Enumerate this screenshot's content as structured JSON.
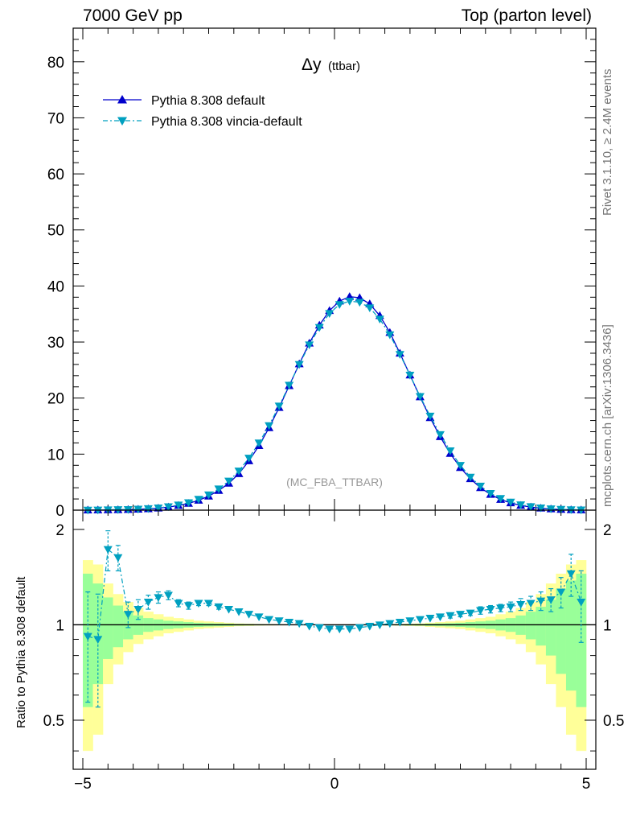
{
  "header": {
    "energy": "7000 GeV pp",
    "process": "Top (parton level)"
  },
  "side_labels": {
    "rivet": "Rivet 3.1.10, ≥ 2.4M events",
    "source": "mcplots.cern.ch [arXiv:1306.3436]"
  },
  "colors": {
    "default": "#0000cc",
    "vincia": "#00a0c0",
    "band_yellow": "#ffff99",
    "band_green": "#99ff99"
  },
  "chart_data": [
    {
      "type": "line",
      "title": "Δy",
      "subtitle": "(ttbar)",
      "analysis_tag": "(MC_FBA_TTBAR)",
      "xlabel": "",
      "ylabel": "",
      "xlim": [
        -5,
        5
      ],
      "ylim": [
        0,
        86
      ],
      "y_ticks": [
        "0",
        "10",
        "20",
        "30",
        "40",
        "50",
        "60",
        "70",
        "80"
      ],
      "legend_position": "top-left",
      "x": [
        -4.9,
        -4.7,
        -4.5,
        -4.3,
        -4.1,
        -3.9,
        -3.7,
        -3.5,
        -3.3,
        -3.1,
        -2.9,
        -2.7,
        -2.5,
        -2.3,
        -2.1,
        -1.9,
        -1.7,
        -1.5,
        -1.3,
        -1.1,
        -0.9,
        -0.7,
        -0.5,
        -0.3,
        -0.1,
        0.1,
        0.3,
        0.5,
        0.7,
        0.9,
        1.1,
        1.3,
        1.5,
        1.7,
        1.9,
        2.1,
        2.3,
        2.5,
        2.7,
        2.9,
        3.1,
        3.3,
        3.5,
        3.7,
        3.9,
        4.1,
        4.3,
        4.5,
        4.7,
        4.9
      ],
      "series": [
        {
          "name": "Pythia 8.308 default",
          "values": [
            0.02,
            0.03,
            0.05,
            0.07,
            0.11,
            0.16,
            0.24,
            0.36,
            0.55,
            0.82,
            1.2,
            1.75,
            2.5,
            3.5,
            4.8,
            6.5,
            8.8,
            11.5,
            14.7,
            18.3,
            22.2,
            26.1,
            29.8,
            33.0,
            35.6,
            37.3,
            38.1,
            37.9,
            36.8,
            34.7,
            31.7,
            28.0,
            24.1,
            20.2,
            16.5,
            13.1,
            10.1,
            7.6,
            5.6,
            4.0,
            2.8,
            1.9,
            1.3,
            0.85,
            0.55,
            0.35,
            0.22,
            0.13,
            0.08,
            0.04
          ]
        },
        {
          "name": "Pythia 8.308 vincia-default",
          "values": [
            0.02,
            0.03,
            0.08,
            0.1,
            0.13,
            0.19,
            0.29,
            0.42,
            0.62,
            0.93,
            1.34,
            1.95,
            2.75,
            3.8,
            5.2,
            7.0,
            9.3,
            12.0,
            15.1,
            18.6,
            22.3,
            26.0,
            29.5,
            32.6,
            35.1,
            36.7,
            37.3,
            37.1,
            36.1,
            34.1,
            31.3,
            27.8,
            24.1,
            20.3,
            16.8,
            13.5,
            10.6,
            8.0,
            5.9,
            4.3,
            3.0,
            2.1,
            1.45,
            0.97,
            0.64,
            0.42,
            0.26,
            0.16,
            0.09,
            0.05
          ]
        }
      ]
    },
    {
      "type": "line",
      "ylabel": "Ratio to Pythia 8.308 default",
      "xlim": [
        -5,
        5
      ],
      "ylim": [
        0.35,
        2.3
      ],
      "x_ticks": [
        "−5",
        "0",
        "5"
      ],
      "y_ticks_right": [
        "0.5",
        "1",
        "2"
      ],
      "x": [
        -4.9,
        -4.7,
        -4.5,
        -4.3,
        -4.1,
        -3.9,
        -3.7,
        -3.5,
        -3.3,
        -3.1,
        -2.9,
        -2.7,
        -2.5,
        -2.3,
        -2.1,
        -1.9,
        -1.7,
        -1.5,
        -1.3,
        -1.1,
        -0.9,
        -0.7,
        -0.5,
        -0.3,
        -0.1,
        0.1,
        0.3,
        0.5,
        0.7,
        0.9,
        1.1,
        1.3,
        1.5,
        1.7,
        1.9,
        2.1,
        2.3,
        2.5,
        2.7,
        2.9,
        3.1,
        3.3,
        3.5,
        3.7,
        3.9,
        4.1,
        4.3,
        4.5,
        4.7,
        4.9
      ],
      "series": [
        {
          "name": "Pythia 8.308 vincia-default",
          "values": [
            0.92,
            0.9,
            1.73,
            1.63,
            1.08,
            1.12,
            1.18,
            1.22,
            1.24,
            1.17,
            1.15,
            1.17,
            1.17,
            1.14,
            1.12,
            1.1,
            1.08,
            1.06,
            1.04,
            1.03,
            1.02,
            1.01,
            0.99,
            0.98,
            0.97,
            0.97,
            0.97,
            0.98,
            0.99,
            1.0,
            1.01,
            1.02,
            1.03,
            1.04,
            1.05,
            1.06,
            1.07,
            1.08,
            1.09,
            1.11,
            1.12,
            1.13,
            1.14,
            1.16,
            1.17,
            1.19,
            1.2,
            1.27,
            1.45,
            1.18
          ]
        }
      ],
      "vincia_errors": [
        0.35,
        0.35,
        0.25,
        0.15,
        0.1,
        0.08,
        0.06,
        0.05,
        0.04,
        0.03,
        0.03,
        0.02,
        0.02,
        0.02,
        0.01,
        0.01,
        0.01,
        0.01,
        0.01,
        0.01,
        0.01,
        0.01,
        0.01,
        0.01,
        0.01,
        0.01,
        0.01,
        0.01,
        0.01,
        0.01,
        0.01,
        0.01,
        0.01,
        0.01,
        0.01,
        0.01,
        0.02,
        0.02,
        0.02,
        0.03,
        0.03,
        0.03,
        0.04,
        0.05,
        0.06,
        0.08,
        0.1,
        0.14,
        0.22,
        0.3
      ],
      "band_yellow_half": [
        0.6,
        0.55,
        0.35,
        0.25,
        0.18,
        0.13,
        0.1,
        0.08,
        0.06,
        0.05,
        0.04,
        0.03,
        0.025,
        0.02,
        0.015,
        0.01,
        0.008,
        0.006,
        0.005,
        0.004,
        0.003,
        0.003,
        0.003,
        0.003,
        0.003,
        0.003,
        0.003,
        0.003,
        0.003,
        0.004,
        0.005,
        0.006,
        0.008,
        0.01,
        0.015,
        0.02,
        0.025,
        0.03,
        0.04,
        0.05,
        0.06,
        0.08,
        0.1,
        0.13,
        0.18,
        0.25,
        0.35,
        0.45,
        0.55,
        0.6
      ],
      "band_green_half": [
        0.45,
        0.35,
        0.22,
        0.15,
        0.1,
        0.07,
        0.05,
        0.04,
        0.03,
        0.025,
        0.02,
        0.015,
        0.012,
        0.01,
        0.008,
        0.006,
        0.005,
        0.004,
        0.003,
        0.002,
        0.002,
        0.002,
        0.002,
        0.002,
        0.002,
        0.002,
        0.002,
        0.002,
        0.002,
        0.002,
        0.003,
        0.004,
        0.005,
        0.006,
        0.008,
        0.01,
        0.012,
        0.015,
        0.02,
        0.025,
        0.03,
        0.04,
        0.05,
        0.07,
        0.1,
        0.14,
        0.2,
        0.3,
        0.38,
        0.45
      ]
    }
  ]
}
